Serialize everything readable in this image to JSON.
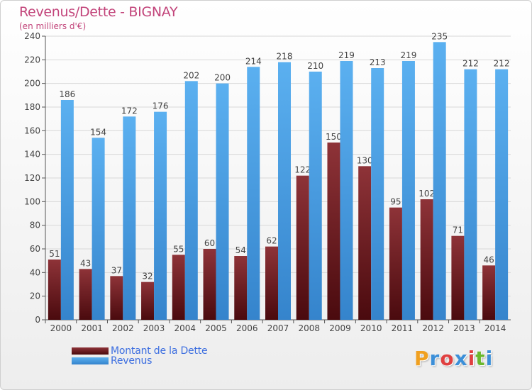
{
  "title": "Revenus/Dette - BIGNAY",
  "subtitle": "(en milliers d'€)",
  "logo": {
    "text": "Proxiti",
    "colors": [
      "#f0a020",
      "#3c8fd8",
      "#e04040",
      "#3c8fd8",
      "#e04040",
      "#6ab82c",
      "#3c8fd8"
    ]
  },
  "colors": {
    "dette": "#7a1e24",
    "revenus": "#4a9fe2",
    "axis": "#555555",
    "grid": "#d8d8d8",
    "accent": "#c2447a"
  },
  "chart_data": {
    "type": "bar",
    "title": "Revenus/Dette - BIGNAY",
    "subtitle": "(en milliers d'€)",
    "categories": [
      "2000",
      "2001",
      "2002",
      "2003",
      "2004",
      "2005",
      "2006",
      "2007",
      "2008",
      "2009",
      "2010",
      "2011",
      "2012",
      "2013",
      "2014"
    ],
    "series": [
      {
        "name": "Montant de la Dette",
        "values": [
          51,
          43,
          37,
          32,
          55,
          60,
          54,
          62,
          122,
          150,
          130,
          95,
          102,
          71,
          46
        ]
      },
      {
        "name": "Revenus",
        "values": [
          186,
          154,
          172,
          176,
          202,
          200,
          214,
          218,
          210,
          219,
          213,
          219,
          235,
          212,
          212
        ]
      }
    ],
    "ylim": [
      0,
      240
    ],
    "yticks": [
      0,
      20,
      40,
      60,
      80,
      100,
      120,
      140,
      160,
      180,
      200,
      220,
      240
    ],
    "grid": true,
    "legend": "bottom-left"
  }
}
